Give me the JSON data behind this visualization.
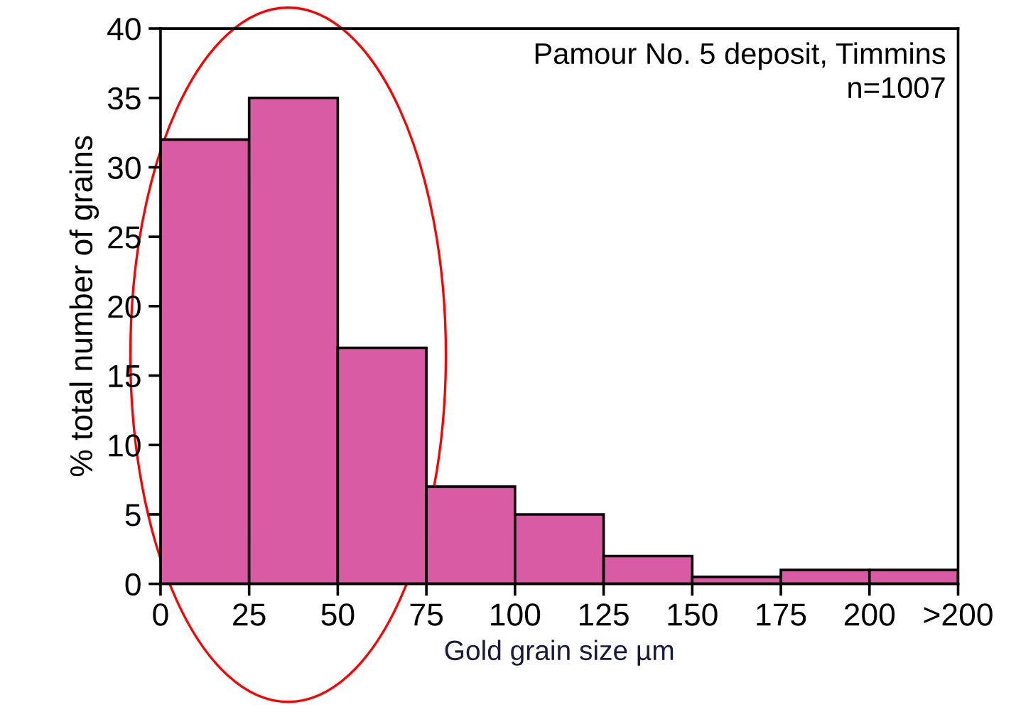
{
  "chart_data": {
    "type": "histogram",
    "xlabel": "Gold grain size µm",
    "ylabel": "% total number of grains",
    "bins": [
      0,
      25,
      50,
      75,
      100,
      125,
      150,
      175,
      200,
      225
    ],
    "values": [
      32,
      35,
      17,
      7,
      5,
      2,
      0.5,
      1,
      1
    ],
    "color": "#d95ba3",
    "xlim": [
      0,
      225
    ],
    "ylim": [
      0,
      40
    ],
    "xticks": [
      0,
      25,
      50,
      75,
      100,
      125,
      150,
      175,
      200,
      {
        "value": 225,
        "label": ">200"
      }
    ],
    "yticks": [
      0,
      5,
      10,
      15,
      20,
      25,
      30,
      35,
      40
    ],
    "grid": false,
    "annotations": [
      "Pamour No. 5 deposit, Timmins\nn=1007"
    ]
  }
}
